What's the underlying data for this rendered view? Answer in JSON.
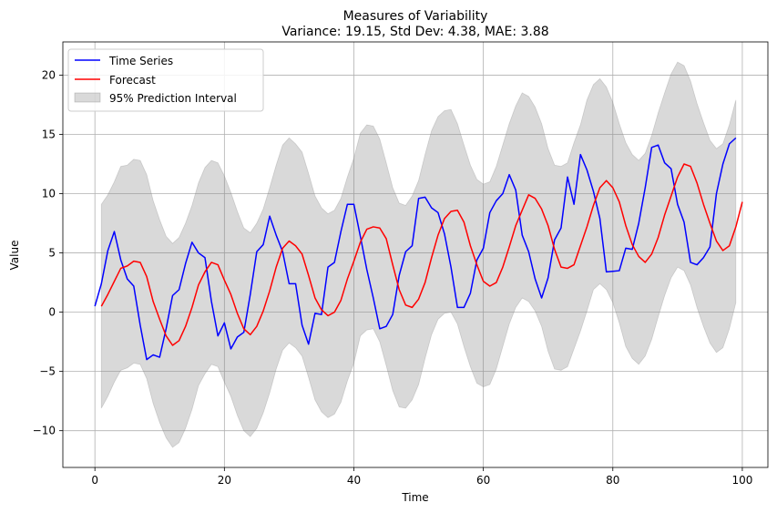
{
  "chart_data": {
    "type": "line",
    "title": "Measures of Variability",
    "subtitle": "Variance: 19.15, Std Dev: 4.38, MAE: 3.88",
    "xlabel": "Time",
    "ylabel": "Value",
    "xlim": [
      -4.95,
      103.95
    ],
    "ylim": [
      -13.1,
      22.8
    ],
    "xticks": [
      0,
      20,
      40,
      60,
      80,
      100
    ],
    "yticks": [
      -10,
      -5,
      0,
      5,
      10,
      15,
      20
    ],
    "grid": true,
    "legend_position": "top-left",
    "series": [
      {
        "name": "Time Series",
        "kind": "line",
        "color": "#0000ff",
        "x_start": 0,
        "values": [
          0.5,
          2.4,
          5.2,
          6.8,
          4.4,
          2.8,
          2.2,
          -1.1,
          -4.0,
          -3.6,
          -3.8,
          -1.4,
          1.4,
          1.9,
          4.1,
          5.9,
          5.0,
          4.6,
          0.9,
          -2.0,
          -0.9,
          -3.1,
          -2.1,
          -1.7,
          1.5,
          5.1,
          5.7,
          8.1,
          6.5,
          5.1,
          2.4,
          2.4,
          -1.1,
          -2.7,
          -0.1,
          -0.2,
          3.8,
          4.2,
          6.8,
          9.1,
          9.1,
          6.4,
          3.6,
          1.2,
          -1.4,
          -1.2,
          -0.2,
          3.1,
          5.1,
          5.6,
          9.6,
          9.7,
          8.8,
          8.4,
          6.6,
          3.8,
          0.4,
          0.4,
          1.6,
          4.4,
          5.4,
          8.4,
          9.4,
          10.0,
          11.6,
          10.3,
          6.5,
          5.1,
          2.8,
          1.2,
          2.9,
          6.1,
          7.1,
          11.4,
          9.1,
          13.3,
          12.0,
          10.2,
          7.9,
          3.4,
          3.45,
          3.5,
          5.4,
          5.3,
          7.5,
          10.5,
          13.9,
          14.1,
          12.6,
          12.1,
          9.1,
          7.6,
          4.2,
          4.0,
          4.6,
          5.5,
          10.0,
          12.5,
          14.2,
          14.7
        ]
      },
      {
        "name": "Forecast",
        "kind": "line",
        "color": "#ff0000",
        "x_start": 1,
        "values": [
          0.5,
          1.5,
          2.6,
          3.7,
          3.9,
          4.3,
          4.2,
          3.0,
          0.9,
          -0.6,
          -2.0,
          -2.8,
          -2.4,
          -1.2,
          0.4,
          2.3,
          3.4,
          4.2,
          4.0,
          2.7,
          1.5,
          -0.1,
          -1.4,
          -1.9,
          -1.2,
          0.1,
          1.8,
          3.8,
          5.4,
          6.0,
          5.6,
          4.9,
          3.1,
          1.2,
          0.2,
          -0.3,
          0.0,
          1.0,
          2.8,
          4.3,
          5.9,
          7.0,
          7.2,
          7.1,
          6.2,
          4.0,
          1.9,
          0.6,
          0.4,
          1.1,
          2.5,
          4.6,
          6.5,
          7.9,
          8.5,
          8.6,
          7.6,
          5.6,
          4.0,
          2.6,
          2.2,
          2.5,
          3.8,
          5.5,
          7.3,
          8.6,
          9.9,
          9.6,
          8.7,
          7.3,
          5.3,
          3.8,
          3.7,
          4.0,
          5.6,
          7.2,
          9.0,
          10.5,
          11.1,
          10.5,
          9.3,
          7.3,
          5.7,
          4.7,
          4.2,
          4.9,
          6.3,
          8.2,
          9.8,
          11.4,
          12.5,
          12.3,
          10.9,
          9.1,
          7.5,
          6.0,
          5.2,
          5.6,
          7.2,
          9.3
        ]
      }
    ],
    "band": {
      "name": "95% Prediction Interval",
      "color": "#808080",
      "x_start": 1,
      "upper": [
        9.1,
        9.9,
        11.0,
        12.3,
        12.4,
        12.9,
        12.8,
        11.6,
        9.4,
        7.8,
        6.4,
        5.8,
        6.3,
        7.5,
        9.0,
        10.9,
        12.2,
        12.8,
        12.6,
        11.5,
        10.1,
        8.5,
        7.1,
        6.7,
        7.5,
        8.7,
        10.5,
        12.4,
        14.1,
        14.7,
        14.2,
        13.5,
        11.7,
        9.8,
        8.8,
        8.3,
        8.6,
        9.6,
        11.4,
        13.0,
        15.1,
        15.8,
        15.7,
        14.6,
        12.6,
        10.5,
        9.2,
        9.0,
        9.8,
        11.1,
        13.3,
        15.3,
        16.5,
        17.0,
        17.1,
        15.9,
        14.1,
        12.4,
        11.2,
        10.8,
        11.0,
        12.3,
        14.1,
        15.9,
        17.4,
        18.5,
        18.2,
        17.3,
        15.9,
        13.8,
        12.4,
        12.3,
        12.6,
        14.3,
        15.8,
        17.9,
        19.2,
        19.7,
        19.0,
        17.7,
        15.9,
        14.3,
        13.3,
        12.8,
        13.4,
        14.9,
        16.8,
        18.5,
        20.1,
        21.1,
        20.8,
        19.5,
        17.6,
        16.0,
        14.5,
        13.8,
        14.2,
        15.8,
        17.9
      ],
      "lower": [
        -8.1,
        -7.1,
        -5.9,
        -4.9,
        -4.7,
        -4.3,
        -4.4,
        -5.6,
        -7.7,
        -9.3,
        -10.6,
        -11.4,
        -11.0,
        -9.8,
        -8.2,
        -6.2,
        -5.2,
        -4.4,
        -4.6,
        -5.9,
        -7.1,
        -8.7,
        -10.0,
        -10.5,
        -9.8,
        -8.5,
        -6.8,
        -4.8,
        -3.2,
        -2.6,
        -3.0,
        -3.7,
        -5.5,
        -7.4,
        -8.4,
        -8.9,
        -8.6,
        -7.6,
        -5.8,
        -4.3,
        -2.0,
        -1.5,
        -1.4,
        -2.5,
        -4.5,
        -6.6,
        -8.0,
        -8.1,
        -7.4,
        -6.1,
        -3.9,
        -1.9,
        -0.6,
        -0.1,
        0.0,
        -1.0,
        -2.9,
        -4.6,
        -6.0,
        -6.3,
        -6.1,
        -4.8,
        -2.9,
        -1.0,
        0.4,
        1.2,
        0.9,
        0.1,
        -1.2,
        -3.3,
        -4.8,
        -4.9,
        -4.6,
        -3.1,
        -1.6,
        0.1,
        1.9,
        2.4,
        1.9,
        0.8,
        -0.9,
        -2.9,
        -3.9,
        -4.4,
        -3.7,
        -2.3,
        -0.4,
        1.4,
        2.9,
        3.8,
        3.5,
        2.3,
        0.4,
        -1.2,
        -2.6,
        -3.4,
        -3.0,
        -1.4,
        0.8
      ]
    }
  }
}
